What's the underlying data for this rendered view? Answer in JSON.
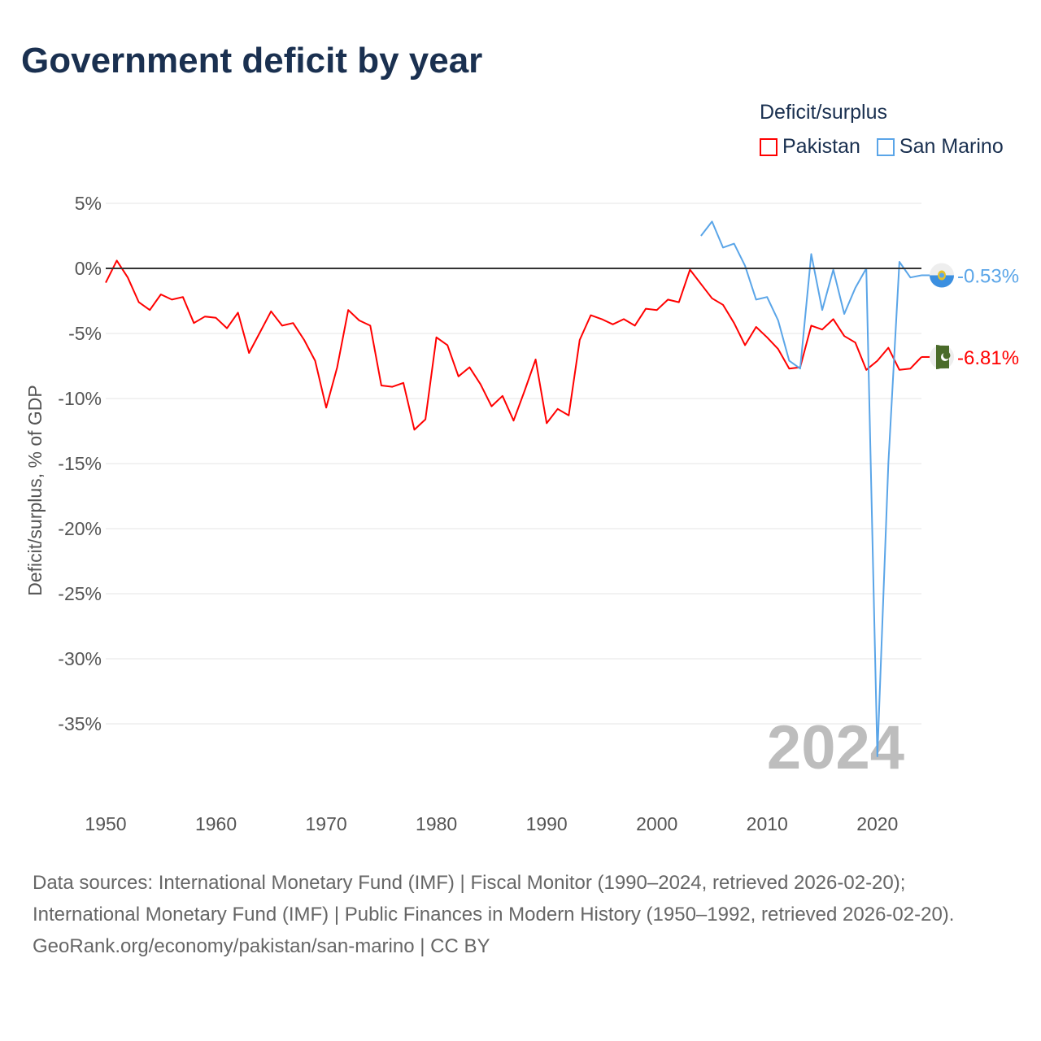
{
  "chart_data": {
    "type": "line",
    "title": "Government deficit by year",
    "ylabel": "Deficit/surplus, % of GDP",
    "xlabel": "",
    "legend_title": "Deficit/surplus",
    "legend_placement": "top-right",
    "xlim": [
      1950,
      2024
    ],
    "ylim": [
      -40,
      7
    ],
    "x_ticks": [
      1950,
      1960,
      1970,
      1980,
      1990,
      2000,
      2010,
      2020
    ],
    "x_tick_labels": [
      "1950",
      "1960",
      "1970",
      "1980",
      "1990",
      "2000",
      "2010",
      "2020"
    ],
    "y_ticks": [
      5,
      0,
      -5,
      -10,
      -15,
      -20,
      -25,
      -30,
      -35
    ],
    "y_tick_labels": [
      "5%",
      "0%",
      "-5%",
      "-10%",
      "-15%",
      "-20%",
      "-25%",
      "-30%",
      "-35%"
    ],
    "grid": true,
    "watermark_year": "2024",
    "series": [
      {
        "name": "Pakistan",
        "color": "#ff0000",
        "end_label": "-6.81%",
        "flag": "pakistan-flag",
        "start_year": 1950,
        "values": [
          -1.1,
          0.6,
          -0.7,
          -2.6,
          -3.2,
          -2.0,
          -2.4,
          -2.2,
          -4.2,
          -3.7,
          -3.8,
          -4.6,
          -3.4,
          -6.5,
          -4.9,
          -3.3,
          -4.4,
          -4.2,
          -5.5,
          -7.1,
          -10.7,
          -7.6,
          -3.2,
          -4.0,
          -4.4,
          -9.0,
          -9.1,
          -8.8,
          -12.4,
          -11.6,
          -5.3,
          -5.9,
          -8.3,
          -7.6,
          -8.9,
          -10.6,
          -9.8,
          -11.7,
          -9.4,
          -7.0,
          -11.9,
          -10.8,
          -11.3,
          -5.5,
          -3.6,
          -3.9,
          -4.3,
          -3.9,
          -4.4,
          -3.1,
          -3.2,
          -2.4,
          -2.6,
          -0.1,
          -1.2,
          -2.3,
          -2.8,
          -4.2,
          -5.9,
          -4.5,
          -5.3,
          -6.2,
          -7.7,
          -7.6,
          -4.4,
          -4.7,
          -3.9,
          -5.2,
          -5.7,
          -7.8,
          -7.1,
          -6.1,
          -7.8,
          -7.7,
          -6.81
        ]
      },
      {
        "name": "San Marino",
        "color": "#5aa5e8",
        "end_label": "-0.53%",
        "flag": "san-marino-flag",
        "start_year": 2004,
        "values": [
          2.5,
          3.6,
          1.6,
          1.9,
          0.2,
          -2.4,
          -2.2,
          -4.0,
          -7.1,
          -7.7,
          1.1,
          -3.2,
          -0.1,
          -3.5,
          -1.5,
          0.0,
          -37.5,
          -15.0,
          0.5,
          -0.7,
          -0.53
        ]
      }
    ]
  },
  "footer": {
    "sources": "Data sources: International Monetary Fund (IMF) | Fiscal Monitor (1990–2024, retrieved 2026-02-20); International Monetary Fund (IMF) | Public Finances in Modern History (1950–1992, retrieved 2026-02-20).",
    "credit": "GeoRank.org/economy/pakistan/san-marino | CC BY"
  }
}
